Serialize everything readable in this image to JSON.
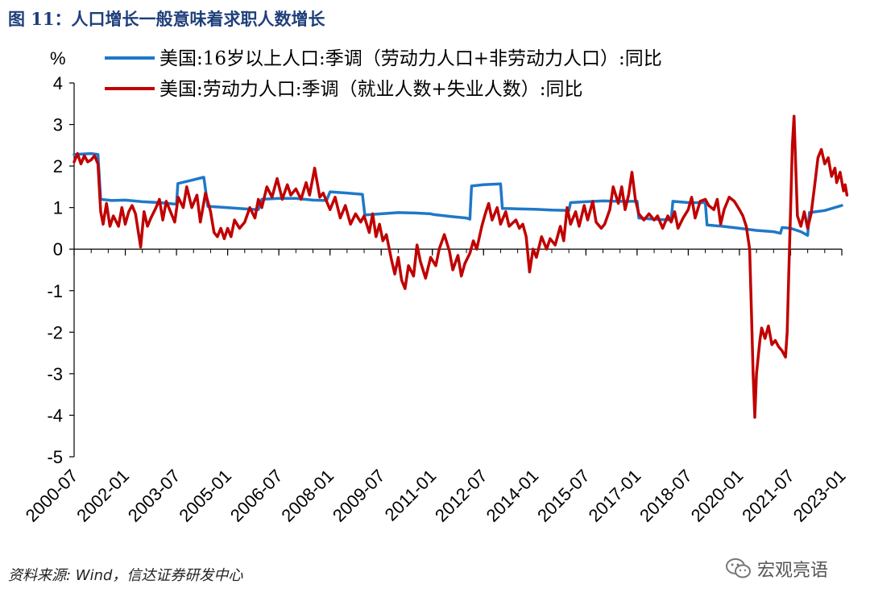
{
  "figure": {
    "title": "图 11：人口增长一般意味着求职人数增长",
    "source": "资料来源: Wind，信达证券研发中心",
    "watermark": "宏观亮语"
  },
  "colors": {
    "series_blue": "#1f78c8",
    "series_red": "#c00000",
    "axis": "#000000",
    "title": "#1f3f7a"
  },
  "chart_data": {
    "type": "line",
    "title": "",
    "ylabel": "%",
    "xlabel": "",
    "ylim": [
      -5,
      4
    ],
    "yticks": [
      -5,
      -4,
      -3,
      -2,
      -1,
      0,
      1,
      2,
      3,
      4
    ],
    "x_range": [
      2000.5,
      2023.0
    ],
    "xtick_labels": [
      "2000-07",
      "2002-01",
      "2003-07",
      "2005-01",
      "2006-07",
      "2008-01",
      "2009-07",
      "2011-01",
      "2012-07",
      "2014-01",
      "2015-07",
      "2017-01",
      "2018-07",
      "2020-01",
      "2021-07",
      "2023-01"
    ],
    "legend_position": "top",
    "series": [
      {
        "name": "美国:16岁以上人口:季调（劳动力人口+非劳动力人口）:同比",
        "color": "#1f78c8",
        "points": [
          [
            2000.5,
            2.28
          ],
          [
            2001.0,
            2.3
          ],
          [
            2001.2,
            2.28
          ],
          [
            2001.28,
            1.2
          ],
          [
            2001.6,
            1.17
          ],
          [
            2002.0,
            1.18
          ],
          [
            2002.5,
            1.14
          ],
          [
            2003.0,
            1.12
          ],
          [
            2003.5,
            1.08
          ],
          [
            2003.54,
            1.58
          ],
          [
            2003.9,
            1.65
          ],
          [
            2004.3,
            1.73
          ],
          [
            2004.42,
            1.03
          ],
          [
            2005.0,
            1.0
          ],
          [
            2005.5,
            0.97
          ],
          [
            2005.9,
            0.95
          ],
          [
            2006.0,
            1.2
          ],
          [
            2006.5,
            1.22
          ],
          [
            2007.0,
            1.22
          ],
          [
            2007.5,
            1.18
          ],
          [
            2007.9,
            1.17
          ],
          [
            2008.0,
            1.38
          ],
          [
            2008.5,
            1.35
          ],
          [
            2008.95,
            1.32
          ],
          [
            2009.02,
            0.82
          ],
          [
            2009.5,
            0.85
          ],
          [
            2010.0,
            0.88
          ],
          [
            2010.5,
            0.87
          ],
          [
            2010.95,
            0.85
          ],
          [
            2011.05,
            0.83
          ],
          [
            2011.6,
            0.78
          ],
          [
            2012.0,
            0.75
          ],
          [
            2012.1,
            0.72
          ],
          [
            2012.15,
            1.52
          ],
          [
            2012.5,
            1.55
          ],
          [
            2013.0,
            1.57
          ],
          [
            2013.05,
            0.98
          ],
          [
            2013.5,
            0.97
          ],
          [
            2014.0,
            0.96
          ],
          [
            2014.5,
            0.94
          ],
          [
            2015.0,
            0.93
          ],
          [
            2015.05,
            1.12
          ],
          [
            2015.5,
            1.14
          ],
          [
            2016.0,
            1.16
          ],
          [
            2016.5,
            1.15
          ],
          [
            2017.0,
            1.15
          ],
          [
            2017.05,
            0.75
          ],
          [
            2017.5,
            0.72
          ],
          [
            2018.0,
            0.7
          ],
          [
            2018.05,
            1.15
          ],
          [
            2018.5,
            1.12
          ],
          [
            2019.0,
            1.12
          ],
          [
            2019.05,
            0.58
          ],
          [
            2019.5,
            0.55
          ],
          [
            2020.0,
            0.5
          ],
          [
            2020.5,
            0.45
          ],
          [
            2021.0,
            0.42
          ],
          [
            2021.2,
            0.38
          ],
          [
            2021.25,
            0.52
          ],
          [
            2021.5,
            0.5
          ],
          [
            2021.8,
            0.42
          ],
          [
            2022.0,
            0.33
          ],
          [
            2022.05,
            0.88
          ],
          [
            2022.5,
            0.93
          ],
          [
            2023.0,
            1.05
          ]
        ]
      },
      {
        "name": "美国:劳动力人口:季调（就业人数+失业人数）:同比",
        "color": "#c00000",
        "points": [
          [
            2000.5,
            2.1
          ],
          [
            2000.6,
            2.3
          ],
          [
            2000.7,
            2.05
          ],
          [
            2000.8,
            2.25
          ],
          [
            2000.9,
            2.1
          ],
          [
            2001.0,
            2.15
          ],
          [
            2001.1,
            2.25
          ],
          [
            2001.2,
            2.05
          ],
          [
            2001.28,
            0.9
          ],
          [
            2001.35,
            0.6
          ],
          [
            2001.45,
            1.1
          ],
          [
            2001.55,
            0.55
          ],
          [
            2001.65,
            0.8
          ],
          [
            2001.8,
            0.55
          ],
          [
            2001.9,
            1.0
          ],
          [
            2002.0,
            0.6
          ],
          [
            2002.1,
            0.9
          ],
          [
            2002.2,
            1.05
          ],
          [
            2002.3,
            0.85
          ],
          [
            2002.45,
            0.05
          ],
          [
            2002.55,
            0.9
          ],
          [
            2002.65,
            0.55
          ],
          [
            2002.75,
            0.75
          ],
          [
            2002.9,
            1.0
          ],
          [
            2003.0,
            1.2
          ],
          [
            2003.1,
            0.7
          ],
          [
            2003.2,
            1.15
          ],
          [
            2003.3,
            0.95
          ],
          [
            2003.45,
            0.65
          ],
          [
            2003.55,
            1.25
          ],
          [
            2003.7,
            1.0
          ],
          [
            2003.8,
            1.5
          ],
          [
            2003.95,
            1.0
          ],
          [
            2004.1,
            1.3
          ],
          [
            2004.2,
            0.65
          ],
          [
            2004.35,
            1.35
          ],
          [
            2004.5,
            0.9
          ],
          [
            2004.6,
            0.4
          ],
          [
            2004.7,
            0.3
          ],
          [
            2004.8,
            0.5
          ],
          [
            2004.9,
            0.25
          ],
          [
            2005.0,
            0.5
          ],
          [
            2005.1,
            0.3
          ],
          [
            2005.2,
            0.7
          ],
          [
            2005.35,
            0.5
          ],
          [
            2005.5,
            0.65
          ],
          [
            2005.65,
            1.0
          ],
          [
            2005.8,
            0.75
          ],
          [
            2005.9,
            1.2
          ],
          [
            2006.0,
            1.0
          ],
          [
            2006.15,
            1.5
          ],
          [
            2006.3,
            1.25
          ],
          [
            2006.45,
            1.7
          ],
          [
            2006.6,
            1.2
          ],
          [
            2006.75,
            1.55
          ],
          [
            2006.85,
            1.3
          ],
          [
            2007.0,
            1.45
          ],
          [
            2007.15,
            1.2
          ],
          [
            2007.3,
            1.6
          ],
          [
            2007.4,
            1.3
          ],
          [
            2007.55,
            1.95
          ],
          [
            2007.7,
            1.25
          ],
          [
            2007.8,
            1.35
          ],
          [
            2007.9,
            1.15
          ],
          [
            2008.0,
            0.95
          ],
          [
            2008.15,
            1.25
          ],
          [
            2008.3,
            0.75
          ],
          [
            2008.45,
            1.05
          ],
          [
            2008.6,
            0.6
          ],
          [
            2008.75,
            0.85
          ],
          [
            2008.9,
            0.65
          ],
          [
            2009.0,
            0.8
          ],
          [
            2009.15,
            0.4
          ],
          [
            2009.25,
            0.85
          ],
          [
            2009.35,
            0.3
          ],
          [
            2009.45,
            0.6
          ],
          [
            2009.55,
            0.2
          ],
          [
            2009.65,
            0.35
          ],
          [
            2009.8,
            -0.25
          ],
          [
            2009.9,
            -0.6
          ],
          [
            2010.0,
            -0.2
          ],
          [
            2010.1,
            -0.75
          ],
          [
            2010.2,
            -0.95
          ],
          [
            2010.3,
            -0.4
          ],
          [
            2010.45,
            -0.65
          ],
          [
            2010.55,
            0.1
          ],
          [
            2010.65,
            -0.3
          ],
          [
            2010.8,
            -0.7
          ],
          [
            2010.95,
            -0.2
          ],
          [
            2011.1,
            -0.4
          ],
          [
            2011.2,
            0.0
          ],
          [
            2011.35,
            0.35
          ],
          [
            2011.5,
            -0.05
          ],
          [
            2011.6,
            -0.5
          ],
          [
            2011.75,
            -0.15
          ],
          [
            2011.85,
            -0.65
          ],
          [
            2011.95,
            -0.35
          ],
          [
            2012.1,
            -0.1
          ],
          [
            2012.2,
            0.2
          ],
          [
            2012.3,
            0.0
          ],
          [
            2012.45,
            0.55
          ],
          [
            2012.55,
            0.85
          ],
          [
            2012.65,
            1.1
          ],
          [
            2012.75,
            0.7
          ],
          [
            2012.9,
            1.0
          ],
          [
            2013.0,
            0.6
          ],
          [
            2013.15,
            0.9
          ],
          [
            2013.25,
            0.55
          ],
          [
            2013.45,
            0.7
          ],
          [
            2013.55,
            0.5
          ],
          [
            2013.65,
            0.6
          ],
          [
            2013.75,
            0.3
          ],
          [
            2013.85,
            -0.55
          ],
          [
            2013.95,
            0.0
          ],
          [
            2014.05,
            -0.2
          ],
          [
            2014.2,
            0.3
          ],
          [
            2014.35,
            0.0
          ],
          [
            2014.45,
            0.25
          ],
          [
            2014.6,
            0.1
          ],
          [
            2014.75,
            0.55
          ],
          [
            2014.85,
            0.2
          ],
          [
            2014.95,
            1.0
          ],
          [
            2015.05,
            0.6
          ],
          [
            2015.2,
            0.9
          ],
          [
            2015.3,
            0.55
          ],
          [
            2015.45,
            1.05
          ],
          [
            2015.55,
            0.7
          ],
          [
            2015.7,
            1.15
          ],
          [
            2015.8,
            0.65
          ],
          [
            2015.95,
            0.5
          ],
          [
            2016.05,
            0.6
          ],
          [
            2016.2,
            0.95
          ],
          [
            2016.3,
            1.5
          ],
          [
            2016.45,
            1.1
          ],
          [
            2016.55,
            1.5
          ],
          [
            2016.65,
            0.95
          ],
          [
            2016.75,
            1.3
          ],
          [
            2016.85,
            1.85
          ],
          [
            2016.95,
            1.2
          ],
          [
            2017.05,
            0.85
          ],
          [
            2017.2,
            0.7
          ],
          [
            2017.35,
            0.85
          ],
          [
            2017.5,
            0.7
          ],
          [
            2017.6,
            0.8
          ],
          [
            2017.75,
            0.5
          ],
          [
            2017.9,
            0.8
          ],
          [
            2018.0,
            0.65
          ],
          [
            2018.1,
            0.9
          ],
          [
            2018.2,
            0.5
          ],
          [
            2018.35,
            0.75
          ],
          [
            2018.5,
            0.95
          ],
          [
            2018.6,
            1.25
          ],
          [
            2018.7,
            0.75
          ],
          [
            2018.85,
            1.15
          ],
          [
            2019.0,
            1.2
          ],
          [
            2019.1,
            1.05
          ],
          [
            2019.25,
            0.95
          ],
          [
            2019.35,
            1.2
          ],
          [
            2019.45,
            0.6
          ],
          [
            2019.55,
            0.95
          ],
          [
            2019.7,
            1.25
          ],
          [
            2019.85,
            1.15
          ],
          [
            2020.0,
            0.95
          ],
          [
            2020.1,
            0.8
          ],
          [
            2020.2,
            0.55
          ],
          [
            2020.3,
            0.0
          ],
          [
            2020.35,
            -1.5
          ],
          [
            2020.4,
            -3.0
          ],
          [
            2020.45,
            -4.05
          ],
          [
            2020.5,
            -3.0
          ],
          [
            2020.6,
            -2.2
          ],
          [
            2020.65,
            -1.9
          ],
          [
            2020.75,
            -2.15
          ],
          [
            2020.85,
            -1.85
          ],
          [
            2020.95,
            -2.3
          ],
          [
            2021.05,
            -2.2
          ],
          [
            2021.15,
            -2.35
          ],
          [
            2021.25,
            -2.45
          ],
          [
            2021.35,
            -2.6
          ],
          [
            2021.4,
            -2.0
          ],
          [
            2021.45,
            -0.5
          ],
          [
            2021.5,
            1.0
          ],
          [
            2021.55,
            2.5
          ],
          [
            2021.6,
            3.2
          ],
          [
            2021.65,
            2.0
          ],
          [
            2021.7,
            0.8
          ],
          [
            2021.8,
            0.55
          ],
          [
            2021.9,
            0.9
          ],
          [
            2022.0,
            0.5
          ],
          [
            2022.1,
            0.85
          ],
          [
            2022.2,
            1.5
          ],
          [
            2022.3,
            2.2
          ],
          [
            2022.4,
            2.4
          ],
          [
            2022.5,
            2.05
          ],
          [
            2022.6,
            2.2
          ],
          [
            2022.7,
            1.75
          ],
          [
            2022.8,
            1.95
          ],
          [
            2022.85,
            1.6
          ],
          [
            2022.95,
            1.85
          ],
          [
            2023.05,
            1.4
          ],
          [
            2023.1,
            1.55
          ],
          [
            2023.15,
            1.3
          ]
        ]
      }
    ]
  }
}
